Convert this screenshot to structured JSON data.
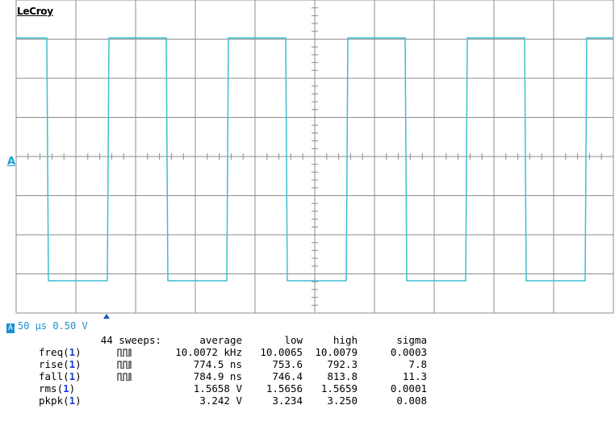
{
  "brand": "LeCroy",
  "channel_marker": "A",
  "trace_color": "#3fbfcf",
  "grid_color": "#8c8c8c",
  "waveform": {
    "type": "square",
    "period_divisions": 2,
    "high_level_divisions": 3,
    "low_level_divisions": -3
  },
  "timebase": {
    "channel_icon": "channel-a-icon",
    "label": "50 μs 0.50 V"
  },
  "measurements": {
    "header": {
      "sweeps": "44 sweeps:",
      "average": "average",
      "low": "low",
      "high": "high",
      "sigma": "sigma"
    },
    "rows": [
      {
        "name": "freq(",
        "ch": "1",
        "close": ")",
        "icon": "pulse-train-icon",
        "average": "10.0072 kHz",
        "low": "10.0065",
        "high": "10.0079",
        "sigma": "0.0003"
      },
      {
        "name": "rise(",
        "ch": "1",
        "close": ")",
        "icon": "pulse-train-icon",
        "average": "774.5 ns",
        "low": "753.6",
        "high": "792.3",
        "sigma": "7.8"
      },
      {
        "name": "fall(",
        "ch": "1",
        "close": ")",
        "icon": "pulse-train-icon",
        "average": "784.9 ns",
        "low": "746.4",
        "high": "813.8",
        "sigma": "11.3"
      },
      {
        "name": "rms(",
        "ch": "1",
        "close": ")",
        "icon": "",
        "average": "1.5658 V",
        "low": "1.5656",
        "high": "1.5659",
        "sigma": "0.0001"
      },
      {
        "name": "pkpk(",
        "ch": "1",
        "close": ")",
        "icon": "",
        "average": "3.242 V",
        "low": "3.234",
        "high": "3.250",
        "sigma": "0.008"
      }
    ]
  }
}
